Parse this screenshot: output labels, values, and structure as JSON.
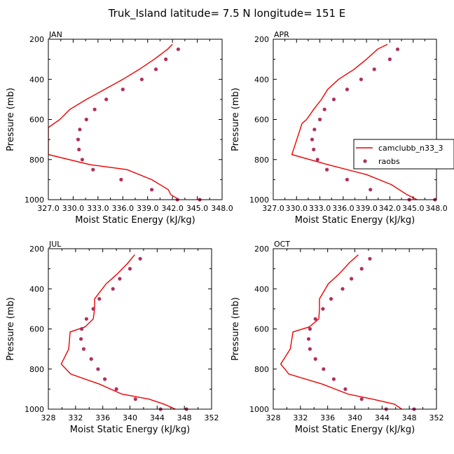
{
  "title": "Truk_Island  latitude= 7.5 N longitude= 151 E",
  "colors": {
    "model": "#ee0000",
    "obs": "#b03060",
    "axis": "#000000"
  },
  "legend": {
    "entries": [
      "camclubb_n33_3",
      "raobs"
    ],
    "placement": "right of APR panel"
  },
  "chart_data": [
    {
      "type": "line",
      "panel": "JAN",
      "xlabel": "Moist Static Energy (kJ/kg)",
      "ylabel": "Pressure (mb)",
      "xlim": [
        327.0,
        348.0
      ],
      "ylim": [
        1000,
        200
      ],
      "xticks": [
        327.0,
        330.0,
        333.0,
        336.0,
        339.0,
        342.0,
        345.0,
        348.0
      ],
      "xtick_labels": [
        "327.0",
        "330.0",
        "333.0",
        "336.0",
        "339.0",
        "342.0",
        "345.0",
        "348.0"
      ],
      "yticks": [
        200,
        400,
        600,
        800,
        1000
      ],
      "ytick_labels": [
        "200",
        "400",
        "600",
        "800",
        "1000"
      ],
      "series": [
        {
          "name": "camclubb_n33_3",
          "style": "line",
          "x": [
            342.0,
            341.4,
            339.8,
            338.0,
            336.0,
            333.8,
            331.6,
            329.6,
            328.4,
            327.0,
            327.0,
            332.0,
            336.5,
            339.5,
            341.5,
            341.8,
            342.8
          ],
          "y": [
            225,
            250,
            300,
            350,
            400,
            450,
            500,
            550,
            600,
            640,
            775,
            825,
            850,
            900,
            950,
            975,
            1000
          ]
        },
        {
          "name": "raobs",
          "style": "marker",
          "x": [
            342.7,
            341.2,
            340.0,
            338.3,
            336.0,
            334.0,
            332.6,
            331.6,
            330.8,
            330.6,
            330.7,
            331.1,
            332.4,
            335.8,
            339.5,
            342.6,
            345.3
          ],
          "y": [
            250,
            300,
            350,
            400,
            450,
            500,
            550,
            600,
            650,
            700,
            750,
            800,
            850,
            900,
            950,
            1000,
            1000
          ]
        }
      ]
    },
    {
      "type": "line",
      "panel": "APR",
      "xlabel": "Moist Static Energy (kJ/kg)",
      "ylabel": "Pressure (mb)",
      "xlim": [
        327.0,
        348.0
      ],
      "ylim": [
        1000,
        200
      ],
      "xticks": [
        327.0,
        330.0,
        333.0,
        336.0,
        339.0,
        342.0,
        345.0,
        348.0
      ],
      "xtick_labels": [
        "327.0",
        "330.0",
        "333.0",
        "336.0",
        "339.0",
        "342.0",
        "345.0",
        "348.0"
      ],
      "yticks": [
        200,
        400,
        600,
        800,
        1000
      ],
      "ytick_labels": [
        "200",
        "400",
        "600",
        "800",
        "1000"
      ],
      "series": [
        {
          "name": "camclubb_n33_3",
          "style": "line",
          "x": [
            341.7,
            340.4,
            339.0,
            337.4,
            335.4,
            334.0,
            333.2,
            332.2,
            331.3,
            330.7,
            329.4,
            334.0,
            339.0,
            342.2,
            344.2,
            345.5
          ],
          "y": [
            225,
            250,
            300,
            350,
            400,
            450,
            500,
            550,
            600,
            620,
            775,
            825,
            875,
            925,
            975,
            1000
          ]
        },
        {
          "name": "raobs",
          "style": "marker",
          "x": [
            343.0,
            342.0,
            340.0,
            338.3,
            336.5,
            334.8,
            333.6,
            333.0,
            332.3,
            332.0,
            332.2,
            332.7,
            333.9,
            336.5,
            339.5,
            344.5,
            347.8
          ],
          "y": [
            250,
            300,
            350,
            400,
            450,
            500,
            550,
            600,
            650,
            700,
            750,
            800,
            850,
            900,
            950,
            1000,
            1000
          ]
        }
      ]
    },
    {
      "type": "line",
      "panel": "JUL",
      "xlabel": "Moist Static Energy (kJ/kg)",
      "ylabel": "Pressure (mb)",
      "xlim": [
        328,
        352
      ],
      "ylim": [
        1000,
        200
      ],
      "xticks": [
        328,
        332,
        336,
        340,
        344,
        348,
        352
      ],
      "xtick_labels": [
        "328",
        "332",
        "336",
        "340",
        "344",
        "348",
        "352"
      ],
      "yticks": [
        200,
        400,
        600,
        800,
        1000
      ],
      "ytick_labels": [
        "200",
        "400",
        "600",
        "800",
        "1000"
      ],
      "series": [
        {
          "name": "camclubb_n33_3",
          "style": "line",
          "x": [
            340.7,
            339.6,
            338.0,
            336.5,
            334.8,
            334.8,
            334.6,
            333.4,
            331.2,
            331.0,
            329.9,
            331.3,
            335.5,
            338.8,
            342.8,
            345.0,
            346.7
          ],
          "y": [
            230,
            275,
            330,
            375,
            450,
            500,
            550,
            590,
            615,
            700,
            775,
            825,
            875,
            925,
            950,
            975,
            1000
          ]
        },
        {
          "name": "raobs",
          "style": "marker",
          "x": [
            341.5,
            340.0,
            338.5,
            337.5,
            335.5,
            334.6,
            333.6,
            332.9,
            332.8,
            333.2,
            334.3,
            335.3,
            336.3,
            338.0,
            340.8,
            344.5,
            348.3
          ],
          "y": [
            250,
            300,
            350,
            400,
            450,
            500,
            550,
            600,
            650,
            700,
            750,
            800,
            850,
            900,
            950,
            1000,
            1000
          ]
        }
      ]
    },
    {
      "type": "line",
      "panel": "OCT",
      "xlabel": "Moist Static Energy (kJ/kg)",
      "ylabel": "Pressure (mb)",
      "xlim": [
        328,
        352
      ],
      "ylim": [
        1000,
        200
      ],
      "xticks": [
        328,
        332,
        336,
        340,
        344,
        348,
        352
      ],
      "xtick_labels": [
        "328",
        "332",
        "336",
        "340",
        "344",
        "348",
        "352"
      ],
      "yticks": [
        200,
        400,
        600,
        800,
        1000
      ],
      "ytick_labels": [
        "200",
        "400",
        "600",
        "800",
        "1000"
      ],
      "series": [
        {
          "name": "camclubb_n33_3",
          "style": "line",
          "x": [
            340.5,
            339.2,
            337.7,
            336.1,
            334.8,
            334.8,
            334.7,
            333.3,
            330.9,
            330.5,
            329.1,
            330.3,
            335.2,
            339.0,
            342.6,
            345.8,
            346.9
          ],
          "y": [
            230,
            270,
            325,
            375,
            450,
            500,
            550,
            590,
            615,
            700,
            775,
            825,
            875,
            925,
            950,
            975,
            1000
          ]
        },
        {
          "name": "raobs",
          "style": "marker",
          "x": [
            342.2,
            341.0,
            339.5,
            338.2,
            336.5,
            335.3,
            334.2,
            333.4,
            333.2,
            333.4,
            334.2,
            335.4,
            336.9,
            338.6,
            341.0,
            344.6,
            348.7
          ],
          "y": [
            250,
            300,
            350,
            400,
            450,
            500,
            550,
            600,
            650,
            700,
            750,
            800,
            850,
            900,
            950,
            1000,
            1000
          ]
        }
      ]
    }
  ]
}
